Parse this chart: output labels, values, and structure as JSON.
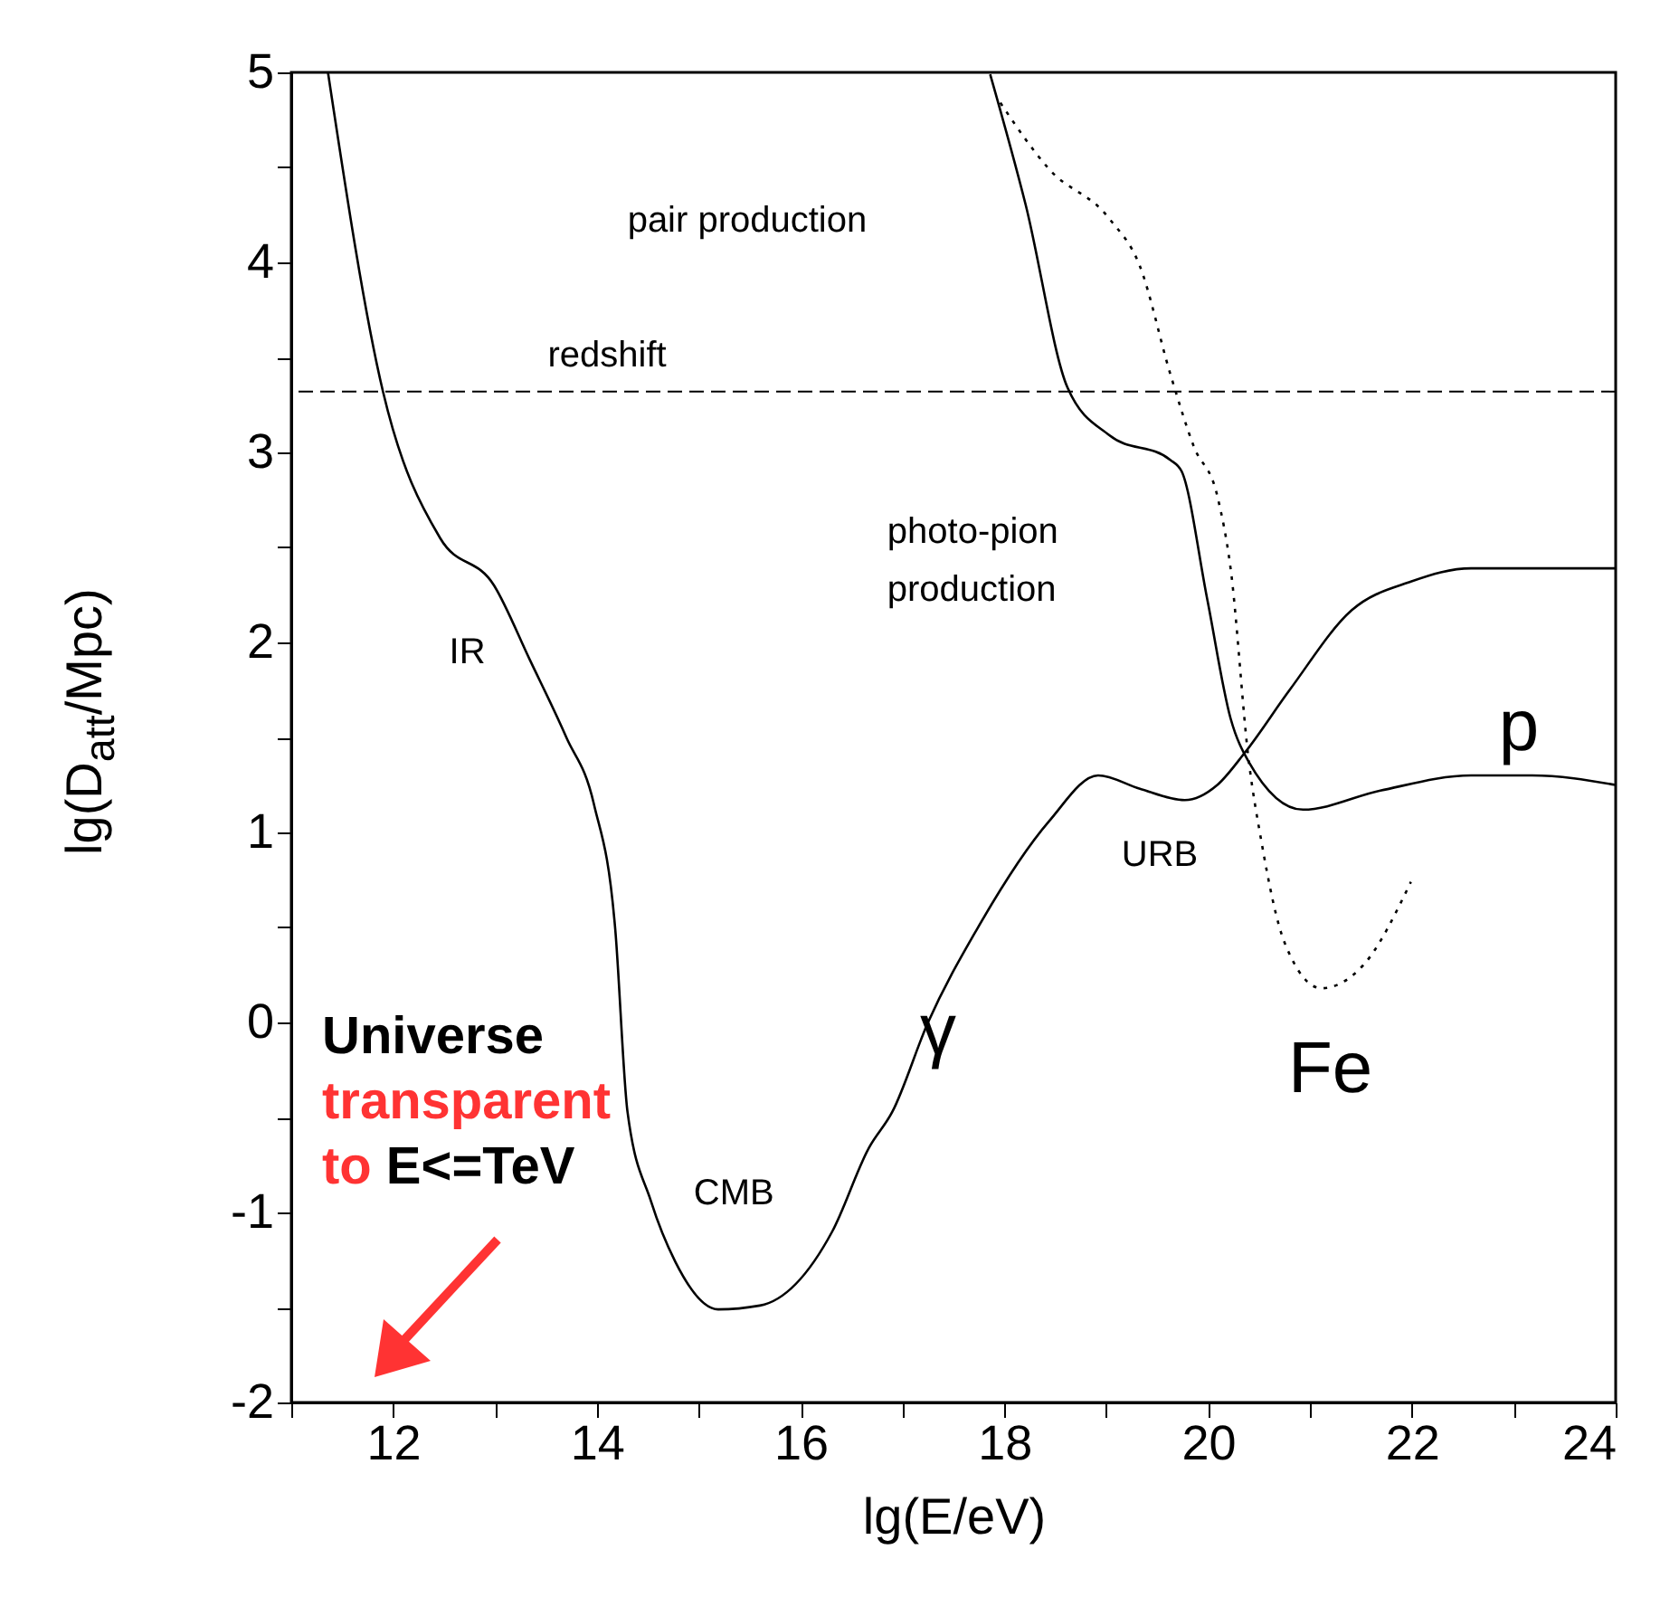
{
  "chart_data": {
    "type": "line",
    "xlabel": "lg(E/eV)",
    "ylabel": "lg(D$_{att}$/Mpc)",
    "xlim": [
      11,
      24
    ],
    "ylim": [
      -2,
      5
    ],
    "xticks": [
      {
        "value": 11,
        "label": null
      },
      12,
      {
        "value": 13,
        "label": null
      },
      14,
      {
        "value": 15,
        "label": null
      },
      16,
      {
        "value": 17,
        "label": null
      },
      18,
      {
        "value": 19,
        "label": null
      },
      20,
      {
        "value": 21,
        "label": null
      },
      22,
      {
        "value": 23,
        "label": null
      },
      24
    ],
    "yticks": [
      -2,
      {
        "value": -1.5,
        "label": null
      },
      -1,
      {
        "value": -0.5,
        "label": null
      },
      0,
      {
        "value": 0.5,
        "label": null
      },
      1,
      {
        "value": 1.5,
        "label": null
      },
      2,
      {
        "value": 2.5,
        "label": null
      },
      3,
      {
        "value": 3.5,
        "label": null
      },
      4,
      {
        "value": 4.5,
        "label": null
      },
      5
    ],
    "series": [
      {
        "name": "γ",
        "color": "#000000",
        "line_style": "solid",
        "x": [
          11.36,
          11.9,
          12.46,
          12.99,
          13.34,
          13.7,
          13.97,
          14.18,
          14.3,
          14.53,
          14.77,
          15.19,
          15.6,
          16.31,
          16.67,
          16.9,
          17.25,
          17.73,
          18.44,
          18.92,
          19.33,
          19.77,
          20.09,
          20.36,
          20.8,
          21.41,
          21.99,
          22.58,
          24
        ],
        "values": [
          5,
          3.32,
          2.55,
          2.3,
          1.91,
          1.5,
          1.15,
          0.49,
          -0.47,
          -0.94,
          -1.26,
          -1.51,
          -1.49,
          -1.1,
          -0.66,
          -0.47,
          0,
          0.49,
          1.06,
          1.3,
          1.23,
          1.17,
          1.25,
          1.42,
          1.75,
          2.17,
          2.32,
          2.39,
          2.39
        ]
      },
      {
        "name": "p",
        "color": "#000000",
        "line_style": "solid",
        "x": [
          17.86,
          18.21,
          18.62,
          19.03,
          19.63,
          19.74,
          19.99,
          20.22,
          20.4,
          20.93,
          21.69,
          22.58,
          23.18,
          24
        ],
        "values": [
          4.99,
          4.3,
          3.34,
          3.09,
          2.96,
          2.9,
          2.23,
          1.6,
          1.37,
          1.12,
          1.22,
          1.3,
          1.3,
          1.25
        ]
      },
      {
        "name": "Fe",
        "color": "#000000",
        "line_style": "dotted",
        "x": [
          17.96,
          18.44,
          19.03,
          19.33,
          19.63,
          19.86,
          20.09,
          20.22,
          20.4,
          20.52,
          20.75,
          21.11,
          21.52,
          21.99
        ],
        "values": [
          4.84,
          4.49,
          4.23,
          3.98,
          3.41,
          3.03,
          2.77,
          2.39,
          1.37,
          0.96,
          0.42,
          0.18,
          0.3,
          0.74
        ]
      }
    ],
    "ref_lines": [
      {
        "axis": "y",
        "value": 3.32,
        "label": "redshift",
        "line_style": "dashed",
        "color": "#000000"
      }
    ],
    "annotations": [
      "pair production",
      "photo-pion production",
      "IR",
      "CMB",
      "URB",
      "Universe",
      "transparent",
      "to",
      "E<=TeV"
    ]
  }
}
